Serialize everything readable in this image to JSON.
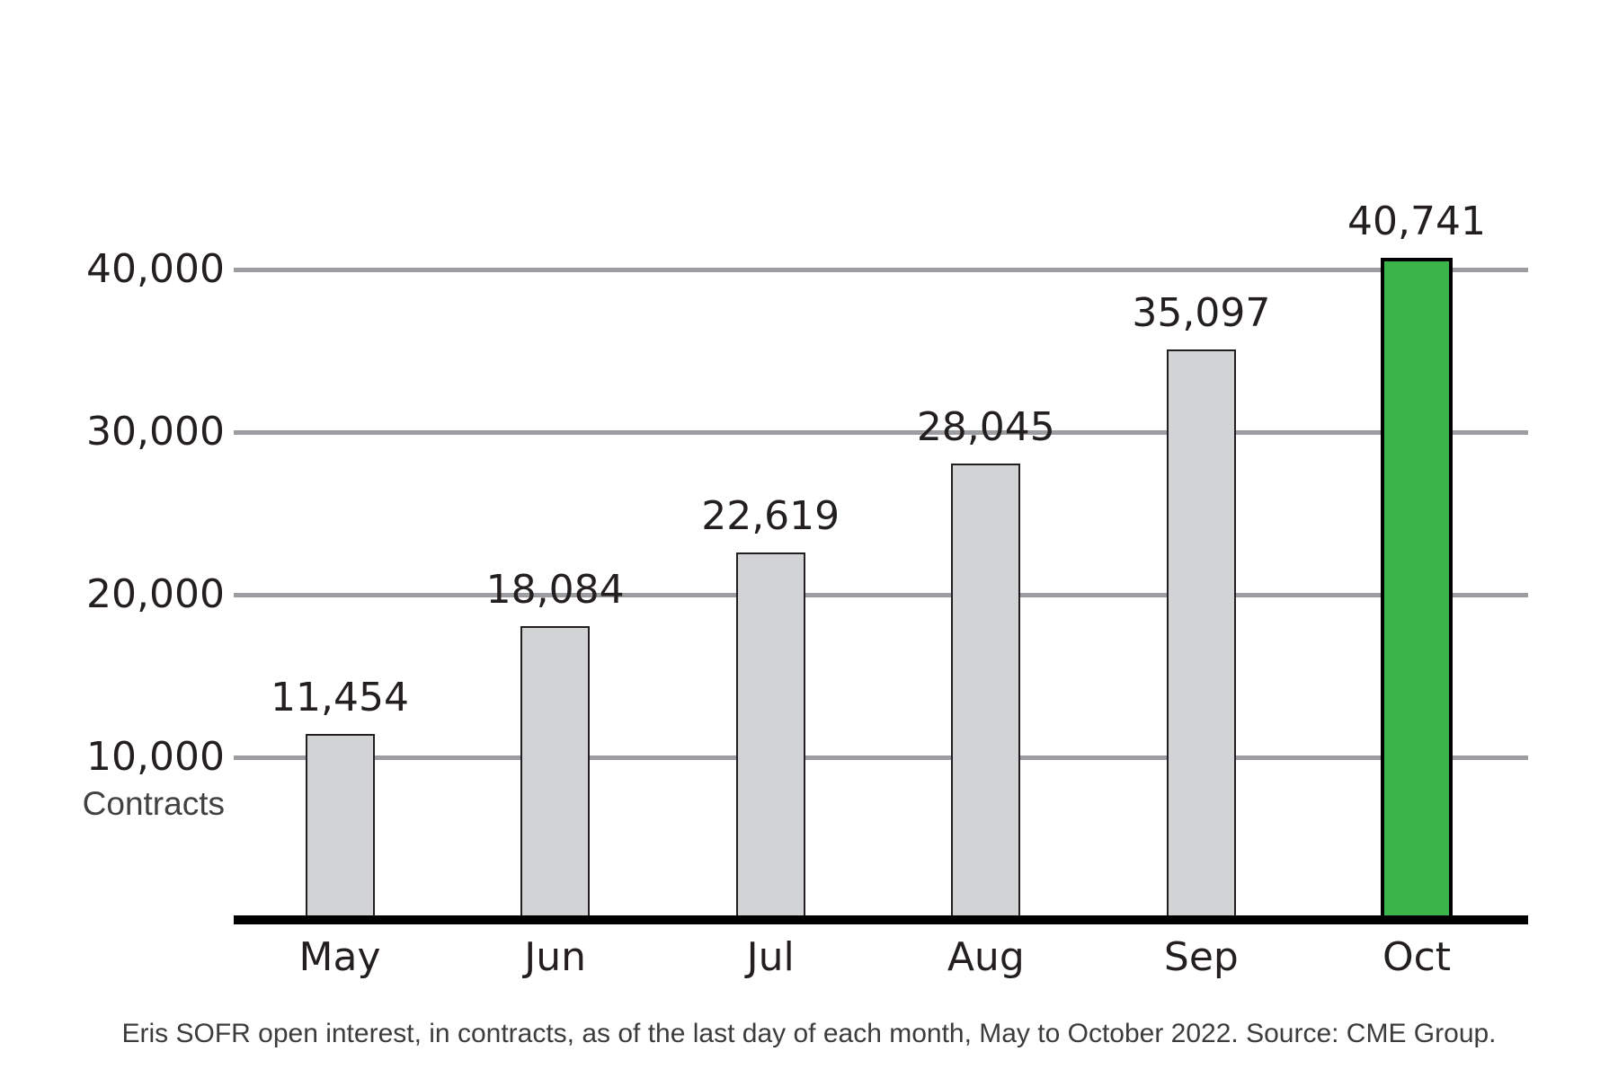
{
  "chart_data": {
    "type": "bar",
    "title": "",
    "categories": [
      "May",
      "Jun",
      "Jul",
      "Aug",
      "Sep",
      "Oct"
    ],
    "values": [
      11454,
      18084,
      22619,
      28045,
      35097,
      40741
    ],
    "value_labels": [
      "11,454",
      "18,084",
      "22,619",
      "28,045",
      "35,097",
      "40,741"
    ],
    "series_name": "Eris SOFR open interest",
    "highlight_index": 5,
    "ylabel": "Contracts",
    "xlabel": "",
    "ylim": [
      0,
      44000
    ],
    "yticks": [
      {
        "value": 10000,
        "label": "10,000"
      },
      {
        "value": 20000,
        "label": "20,000"
      },
      {
        "value": 30000,
        "label": "30,000"
      },
      {
        "value": 40000,
        "label": "40,000"
      }
    ],
    "grid": "horizontal",
    "legend_position": "none",
    "colors": {
      "bar_fill": "#d1d3d4",
      "bar_border": "#231f20",
      "highlight_fill": "#3bb54a",
      "highlight_border": "#000000",
      "gridline": "#9b9da0",
      "axis_line": "#000000",
      "label_text": "#231f20"
    }
  },
  "caption": "Eris SOFR open interest, in contracts, as of the last day of each month, May to October 2022. Source: CME Group."
}
